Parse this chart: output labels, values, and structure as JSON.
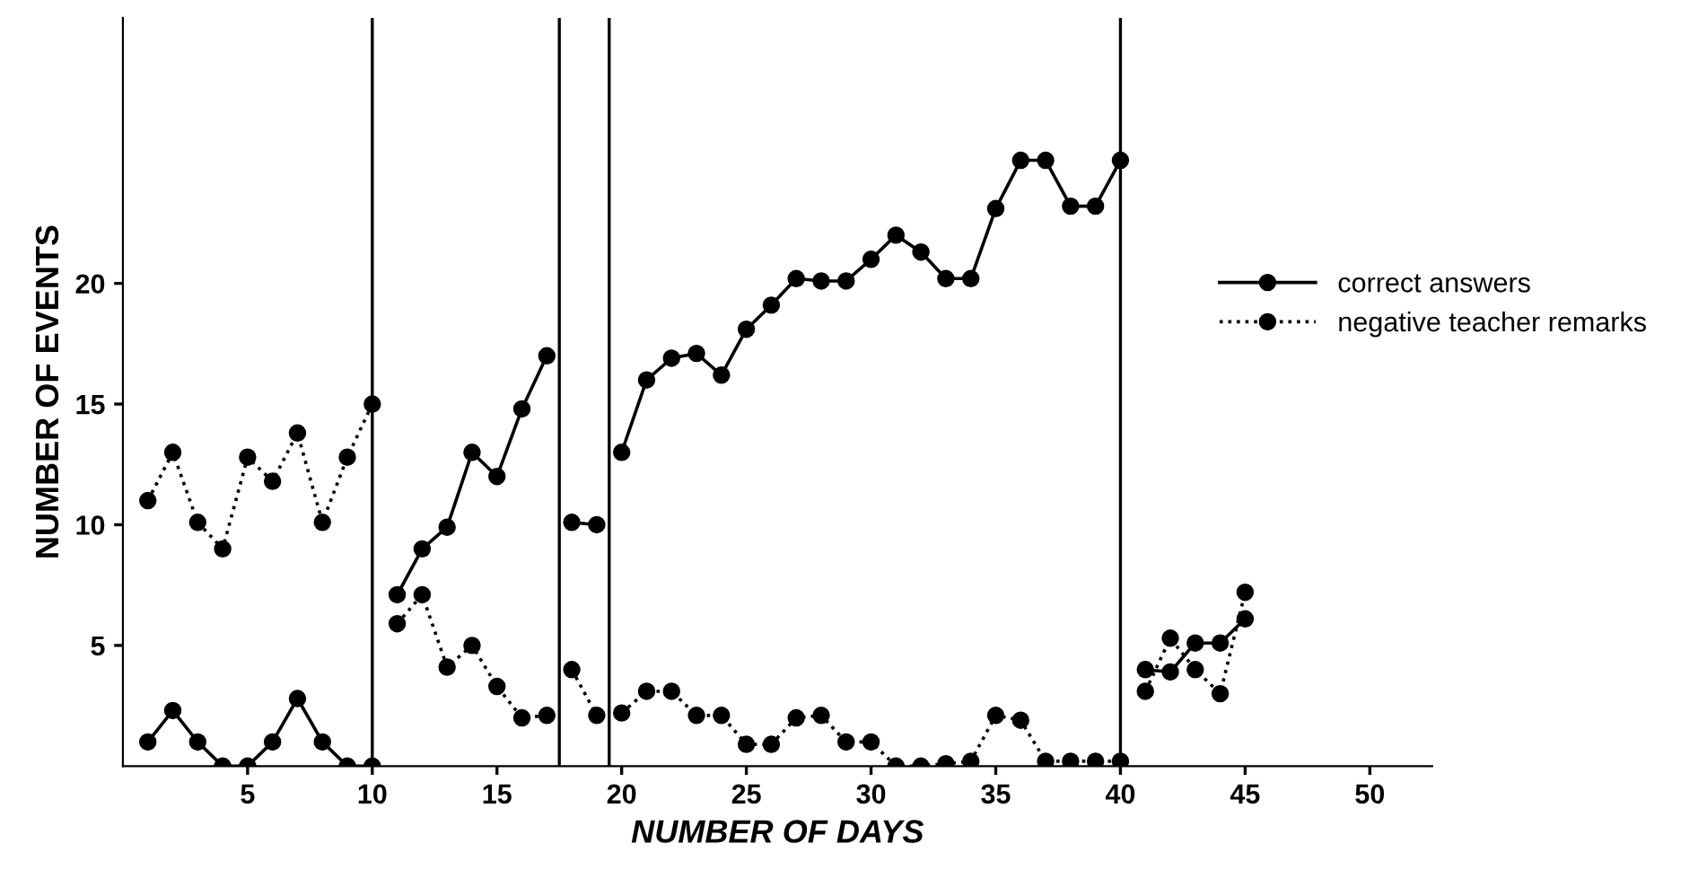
{
  "chart_data": {
    "type": "line",
    "xlabel": "NUMBER OF DAYS",
    "ylabel": "NUMBER OF EVENTS",
    "xlim": [
      0,
      52.5
    ],
    "ylim": [
      0,
      31
    ],
    "xticks": [
      5,
      10,
      15,
      20,
      25,
      30,
      35,
      40,
      45,
      50
    ],
    "yticks": [
      5,
      10,
      15,
      20
    ],
    "grid": false,
    "legend": "right",
    "marker": "circle",
    "series": [
      {
        "name": "correct answers",
        "color": "#000000",
        "line_style": "solid",
        "x": [
          1,
          2,
          3,
          4,
          5,
          6,
          7,
          8,
          9,
          10,
          10.5,
          11,
          12,
          13,
          14,
          15,
          16,
          17,
          17.5,
          18,
          19,
          19.5,
          20,
          21,
          22,
          23,
          24,
          25,
          26,
          27,
          28,
          29,
          30,
          31,
          32,
          33,
          34,
          35,
          36,
          37,
          38,
          39,
          40,
          40.5,
          41,
          42,
          43,
          44,
          45
        ],
        "values": [
          1,
          2.3,
          1,
          0,
          0,
          1,
          2.8,
          1,
          0,
          0,
          null,
          7.1,
          9,
          9.9,
          13,
          12,
          14.8,
          17,
          null,
          10.1,
          10,
          null,
          13,
          16,
          16.9,
          17.1,
          16.2,
          18.1,
          19.1,
          20.2,
          20.1,
          20.1,
          21,
          22,
          21.3,
          20.2,
          20.2,
          23.1,
          25.1,
          25.1,
          23.2,
          23.2,
          25.1,
          null,
          4,
          3.9,
          5.1,
          5.1,
          6.1
        ]
      },
      {
        "name": "negative teacher remarks",
        "color": "#000000",
        "line_style": "dotted",
        "x": [
          1,
          2,
          3,
          4,
          5,
          6,
          7,
          8,
          9,
          10,
          10.5,
          11,
          12,
          13,
          14,
          15,
          16,
          17,
          17.5,
          18,
          19,
          19.5,
          20,
          21,
          22,
          23,
          24,
          25,
          26,
          27,
          28,
          29,
          30,
          31,
          32,
          33,
          34,
          35,
          36,
          37,
          38,
          39,
          40,
          40.5,
          41,
          42,
          43,
          44,
          45
        ],
        "values": [
          11,
          13,
          10.1,
          9,
          12.8,
          11.8,
          13.8,
          10.1,
          12.8,
          15,
          null,
          5.9,
          7.1,
          4.1,
          5,
          3.3,
          2,
          2.1,
          null,
          4,
          2.1,
          null,
          2.2,
          3.1,
          3.1,
          2.1,
          2.1,
          0.9,
          0.9,
          2,
          2.1,
          1,
          1,
          0,
          0,
          0.1,
          0.2,
          2.1,
          1.9,
          0.2,
          0.2,
          0.2,
          0.2,
          null,
          3.1,
          5.3,
          4,
          3,
          7.2
        ]
      }
    ],
    "ref_lines": [
      {
        "axis": "x",
        "value": 10,
        "label": null,
        "color": "#000000"
      },
      {
        "axis": "x",
        "value": 17.5,
        "label": null,
        "color": "#000000"
      },
      {
        "axis": "x",
        "value": 19.5,
        "label": null,
        "color": "#000000"
      },
      {
        "axis": "x",
        "value": 40,
        "label": null,
        "color": "#000000"
      }
    ]
  }
}
